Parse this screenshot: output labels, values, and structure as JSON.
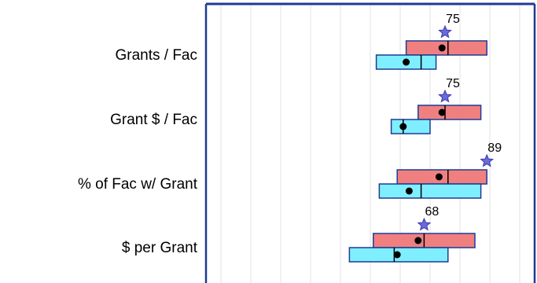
{
  "chart_data": {
    "type": "box",
    "grid": true,
    "x_gridlines": [
      -10,
      0,
      10,
      20,
      30,
      40,
      50,
      60,
      70,
      80,
      90,
      100
    ],
    "xlim": [
      -5,
      105
    ],
    "categories": [
      "Grants / Fac",
      "Grant $ / Fac",
      "% of Fac w/ Grant",
      "$ per Grant"
    ],
    "score_values": [
      75,
      75,
      89,
      68
    ],
    "series": [
      {
        "boxes": [
          {
            "q1": 62,
            "median": 76,
            "q3": 89,
            "mean": 74
          },
          {
            "q1": 66,
            "median": 75,
            "q3": 87,
            "mean": 74
          },
          {
            "q1": 59,
            "median": 76,
            "q3": 89,
            "mean": 73
          },
          {
            "q1": 51,
            "median": 68,
            "q3": 85,
            "mean": 66
          }
        ],
        "fill": "#f08080"
      },
      {
        "boxes": [
          {
            "q1": 52,
            "median": 67,
            "q3": 72,
            "mean": 62
          },
          {
            "q1": 57,
            "median": 61,
            "q3": 70,
            "mean": 61
          },
          {
            "q1": 53,
            "median": 67,
            "q3": 87,
            "mean": 63
          },
          {
            "q1": 43,
            "median": 58,
            "q3": 76,
            "mean": 59
          }
        ],
        "fill": "#7fefff"
      }
    ],
    "colors": {
      "box_border": "#1f3a93",
      "frame": "#1f3a93",
      "grid": "#e3e3e3",
      "star": "#6a6ad8",
      "star_border": "#3b3bb0"
    }
  }
}
